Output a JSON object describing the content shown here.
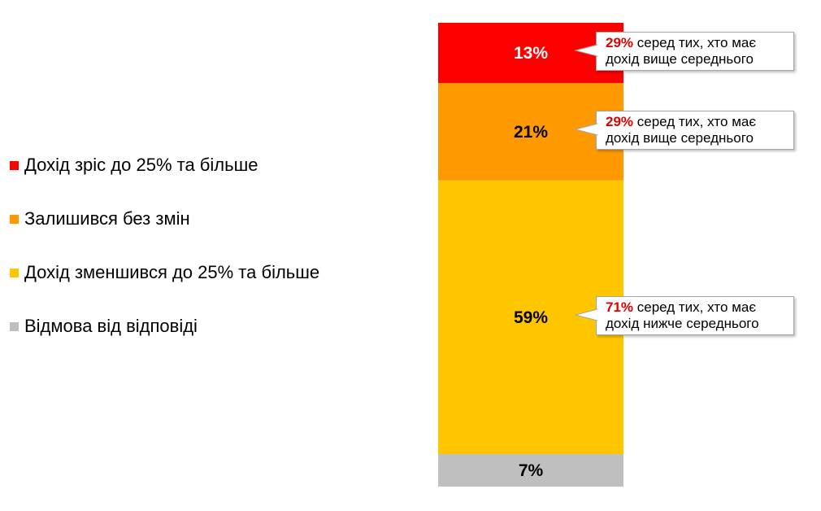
{
  "chart_data": {
    "type": "bar",
    "stacked": true,
    "orientation": "vertical",
    "segments": [
      {
        "name": "Відмова від відповіді",
        "value": 7,
        "label": "7%",
        "color": "#bfbfbf",
        "label_color": "#000000"
      },
      {
        "name": "Дохід зменшився до 25% та більше",
        "value": 59,
        "label": "59%",
        "color": "#ffc600",
        "label_color": "#000000"
      },
      {
        "name": "Залишився без змін",
        "value": 21,
        "label": "21%",
        "color": "#ff9900",
        "label_color": "#000000"
      },
      {
        "name": "Дохід зріс до 25% та більше",
        "value": 13,
        "label": "13%",
        "color": "#ff0000",
        "label_color": "#ffffff"
      }
    ],
    "legend": {
      "placement": "left",
      "items": [
        {
          "label": "Дохід зріс до 25% та більше",
          "color": "#ff0000"
        },
        {
          "label": "Залишився без змін",
          "color": "#ff9900"
        },
        {
          "label": "Дохід зменшився до 25% та більше",
          "color": "#ffc600"
        },
        {
          "label": "Відмова від відповіді",
          "color": "#bfbfbf"
        }
      ]
    },
    "annotations": [
      {
        "segment": "Дохід зріс до 25% та більше",
        "highlight": "29%",
        "line1_rest": " серед тих, хто має",
        "line2": "дохід вище середнього"
      },
      {
        "segment": "Залишився без змін",
        "highlight": "29%",
        "line1_rest": " серед тих, хто має",
        "line2": "дохід вище середнього"
      },
      {
        "segment": "Дохід зменшився до 25% та більше",
        "highlight": "71%",
        "line1_rest": " серед тих, хто має",
        "line2": "дохід нижче середнього"
      }
    ],
    "title": "",
    "xlabel": "",
    "ylabel": "",
    "ylim": [
      0,
      100
    ],
    "grid": false
  }
}
